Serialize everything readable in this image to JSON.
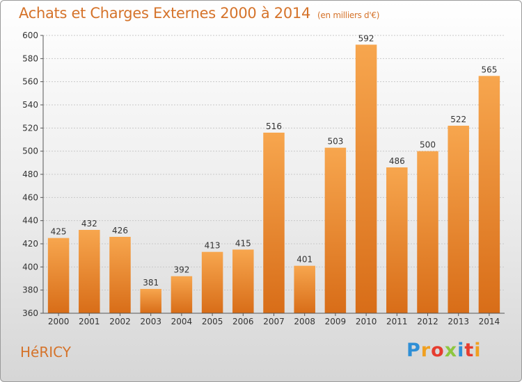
{
  "chart_data": {
    "type": "bar",
    "title": "Achats et Charges Externes 2000 à 2014",
    "subtitle": "(en milliers d'€)",
    "categories": [
      "2000",
      "2001",
      "2002",
      "2003",
      "2004",
      "2005",
      "2006",
      "2007",
      "2008",
      "2009",
      "2010",
      "2011",
      "2012",
      "2013",
      "2014"
    ],
    "values": [
      425,
      432,
      426,
      381,
      392,
      413,
      415,
      516,
      401,
      503,
      592,
      486,
      500,
      522,
      565
    ],
    "ylim": [
      360,
      600
    ],
    "yticks": [
      360,
      380,
      400,
      420,
      440,
      460,
      480,
      500,
      520,
      540,
      560,
      580,
      600
    ],
    "grid": true,
    "bar_color": "#f0923a"
  },
  "footer": {
    "commune": "HéRICY",
    "logo_letters": [
      "P",
      "r",
      "o",
      "x",
      "i",
      "t",
      "i"
    ],
    "logo_colors": [
      "#2f8fd6",
      "#f0a020",
      "#e63c2f",
      "#8dc63f",
      "#2f8fd6",
      "#e63c2f",
      "#f0a020"
    ]
  }
}
